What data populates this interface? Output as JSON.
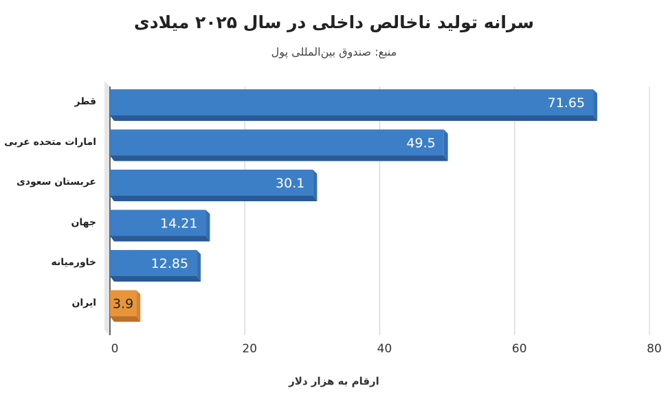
{
  "chart_data": {
    "type": "bar",
    "orientation": "horizontal",
    "title": "سرانه تولید ناخالص داخلی در سال ۲۰۲۵ میلادی",
    "subtitle": "منبع: صندوق بین‌المللی پول",
    "xlabel": "ارقام به هزار دلار",
    "ylabel": "",
    "categories": [
      "قطر",
      "امارات متحده عربی",
      "عربستان سعودی",
      "جهان",
      "خاورمیانه",
      "ایران"
    ],
    "values": [
      71.65,
      49.5,
      30.1,
      14.21,
      12.85,
      3.9
    ],
    "value_labels": [
      "71.65",
      "49.5",
      "30.1",
      "14.21",
      "12.85",
      "3.9"
    ],
    "colors": [
      "#3d7fc6",
      "#3d7fc6",
      "#3d7fc6",
      "#3d7fc6",
      "#3d7fc6",
      "#e8953a"
    ],
    "xlim": [
      0,
      80
    ],
    "xticks": [
      "0",
      "20",
      "40",
      "60",
      "80"
    ],
    "grid": true,
    "legend": "none"
  }
}
